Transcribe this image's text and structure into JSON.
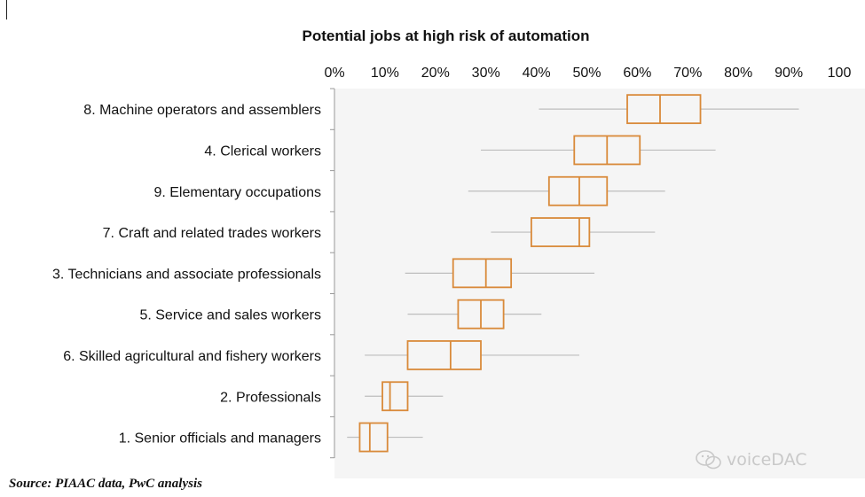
{
  "chart_data": {
    "type": "boxplot",
    "title": "Potential jobs at high risk of automation",
    "xlabel": "",
    "ylabel": "",
    "xlim": [
      0,
      100
    ],
    "x_tick_labels": [
      "0%",
      "10%",
      "20%",
      "30%",
      "40%",
      "50%",
      "60%",
      "70%",
      "80%",
      "90%",
      "100"
    ],
    "x_tick_values": [
      0,
      10,
      20,
      30,
      40,
      50,
      60,
      70,
      80,
      90,
      100
    ],
    "orientation": "horizontal",
    "box_color": "#d98a3a",
    "whisker_color": "#bdbdbd",
    "categories": [
      "8. Machine operators and assemblers",
      "4. Clerical workers",
      "9. Elementary occupations",
      "7. Craft and related trades workers",
      "3. Technicians and associate professionals",
      "5. Service and sales workers",
      "6. Skilled agricultural and fishery workers",
      "2. Professionals",
      "1. Senior officials and managers"
    ],
    "boxes": [
      {
        "min": 40.5,
        "q1": 58,
        "median": 64.5,
        "q3": 72.5,
        "max": 92
      },
      {
        "min": 29,
        "q1": 47.5,
        "median": 54,
        "q3": 60.5,
        "max": 75.5
      },
      {
        "min": 26.5,
        "q1": 42.5,
        "median": 48.5,
        "q3": 54,
        "max": 65.5
      },
      {
        "min": 31,
        "q1": 39,
        "median": 48.5,
        "q3": 50.5,
        "max": 63.5
      },
      {
        "min": 14,
        "q1": 23.5,
        "median": 30,
        "q3": 35,
        "max": 51.5
      },
      {
        "min": 14.5,
        "q1": 24.5,
        "median": 29,
        "q3": 33.5,
        "max": 41
      },
      {
        "min": 6,
        "q1": 14.5,
        "median": 23,
        "q3": 29,
        "max": 48.5
      },
      {
        "min": 6,
        "q1": 9.5,
        "median": 11,
        "q3": 14.5,
        "max": 21.5
      },
      {
        "min": 2.5,
        "q1": 5,
        "median": 7,
        "q3": 10.5,
        "max": 17.5
      }
    ]
  },
  "source_note": "Source: PIAAC data, PwC analysis",
  "watermark": {
    "text": "voiceDAC",
    "icon": "wechat-icon"
  }
}
